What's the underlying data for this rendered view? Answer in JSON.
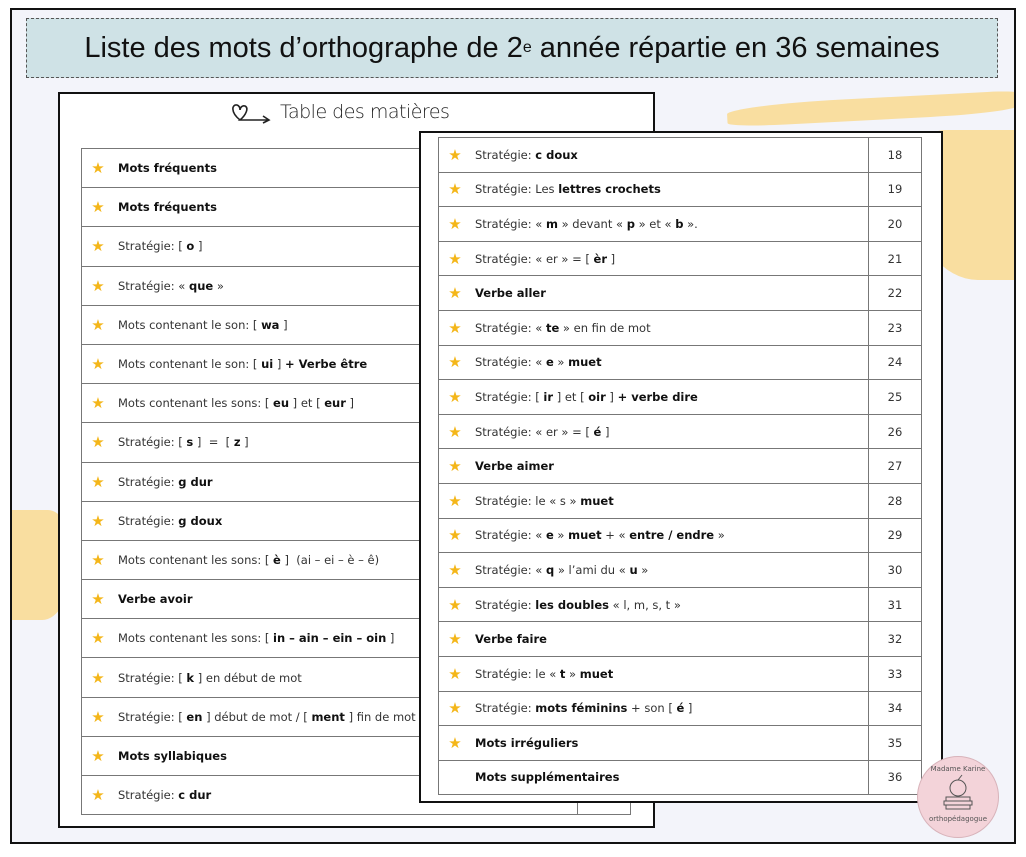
{
  "title": {
    "prefix": "Liste des mots d’orthographe de 2",
    "sup": "e",
    "suffix": " année répartie en 36 semaines"
  },
  "toc_title": "Table des matières",
  "colors": {
    "title_bg": "#cfe2e6",
    "star": "#f4b619",
    "brush": "#f9d98f",
    "background": "#f3f4fa"
  },
  "icons": {
    "row": "star-icon",
    "title": "heart-arrow-icon"
  },
  "back_rows": [
    {
      "seg": [
        {
          "t": "Mots fréquents",
          "b": true
        }
      ]
    },
    {
      "seg": [
        {
          "t": "Mots fréquents",
          "b": true
        }
      ]
    },
    {
      "seg": [
        {
          "t": "Stratégie: [ "
        },
        {
          "t": "o",
          "b": true
        },
        {
          "t": " ]"
        }
      ]
    },
    {
      "seg": [
        {
          "t": "Stratégie: « "
        },
        {
          "t": "que",
          "b": true
        },
        {
          "t": " »"
        }
      ]
    },
    {
      "seg": [
        {
          "t": "Mots contenant le son: [ "
        },
        {
          "t": "wa",
          "b": true
        },
        {
          "t": " ]"
        }
      ]
    },
    {
      "seg": [
        {
          "t": "Mots contenant le son: [ "
        },
        {
          "t": "ui",
          "b": true
        },
        {
          "t": " ] "
        },
        {
          "t": "+ Verbe être",
          "b": true
        }
      ]
    },
    {
      "seg": [
        {
          "t": "Mots contenant les sons: [ "
        },
        {
          "t": "eu",
          "b": true
        },
        {
          "t": " ] et [ "
        },
        {
          "t": "eur",
          "b": true
        },
        {
          "t": " ]"
        }
      ]
    },
    {
      "seg": [
        {
          "t": "Stratégie: [ "
        },
        {
          "t": "s",
          "b": true
        },
        {
          "t": " ]  =  [ "
        },
        {
          "t": "z",
          "b": true
        },
        {
          "t": " ]"
        }
      ]
    },
    {
      "seg": [
        {
          "t": "Stratégie: "
        },
        {
          "t": "g dur",
          "b": true
        }
      ]
    },
    {
      "seg": [
        {
          "t": "Stratégie: "
        },
        {
          "t": "g doux",
          "b": true
        }
      ]
    },
    {
      "seg": [
        {
          "t": "Mots contenant les sons: [ "
        },
        {
          "t": "è",
          "b": true
        },
        {
          "t": " ]  (ai – ei – è – ê)"
        }
      ]
    },
    {
      "seg": [
        {
          "t": "Verbe avoir",
          "b": true
        }
      ]
    },
    {
      "seg": [
        {
          "t": "Mots contenant les sons: [ "
        },
        {
          "t": "in – ain – ein – oin",
          "b": true
        },
        {
          "t": " ]"
        }
      ]
    },
    {
      "seg": [
        {
          "t": "Stratégie: [ "
        },
        {
          "t": "k",
          "b": true
        },
        {
          "t": " ] en début de mot"
        }
      ]
    },
    {
      "seg": [
        {
          "t": "Stratégie: [ "
        },
        {
          "t": "en",
          "b": true
        },
        {
          "t": " ] début de mot / [ "
        },
        {
          "t": "ment",
          "b": true
        },
        {
          "t": " ] fin de mot"
        }
      ]
    },
    {
      "seg": [
        {
          "t": "Mots syllabiques",
          "b": true
        }
      ]
    },
    {
      "seg": [
        {
          "t": "Stratégie: "
        },
        {
          "t": "c dur",
          "b": true
        }
      ]
    }
  ],
  "front_rows": [
    {
      "num": "18",
      "seg": [
        {
          "t": "Stratégie: "
        },
        {
          "t": "c doux",
          "b": true
        }
      ]
    },
    {
      "num": "19",
      "seg": [
        {
          "t": "Stratégie: Les "
        },
        {
          "t": "lettres crochets",
          "b": true
        }
      ]
    },
    {
      "num": "20",
      "seg": [
        {
          "t": "Stratégie: « "
        },
        {
          "t": "m",
          "b": true
        },
        {
          "t": " » devant « "
        },
        {
          "t": "p",
          "b": true
        },
        {
          "t": " » et « "
        },
        {
          "t": "b",
          "b": true
        },
        {
          "t": " »."
        }
      ]
    },
    {
      "num": "21",
      "seg": [
        {
          "t": "Stratégie: « er » = [ "
        },
        {
          "t": "èr",
          "b": true
        },
        {
          "t": " ]"
        }
      ]
    },
    {
      "num": "22",
      "seg": [
        {
          "t": "Verbe aller",
          "b": true
        }
      ]
    },
    {
      "num": "23",
      "seg": [
        {
          "t": "Stratégie: « "
        },
        {
          "t": "te",
          "b": true
        },
        {
          "t": " » en fin de mot"
        }
      ]
    },
    {
      "num": "24",
      "seg": [
        {
          "t": "Stratégie: « "
        },
        {
          "t": "e",
          "b": true
        },
        {
          "t": " » "
        },
        {
          "t": "muet",
          "b": true
        }
      ]
    },
    {
      "num": "25",
      "seg": [
        {
          "t": "Stratégie: [ "
        },
        {
          "t": "ir",
          "b": true
        },
        {
          "t": " ] et [ "
        },
        {
          "t": "oir",
          "b": true
        },
        {
          "t": " ] "
        },
        {
          "t": "+ verbe dire",
          "b": true
        }
      ]
    },
    {
      "num": "26",
      "seg": [
        {
          "t": "Stratégie: « er » = [ "
        },
        {
          "t": "é",
          "b": true
        },
        {
          "t": " ]"
        }
      ]
    },
    {
      "num": "27",
      "seg": [
        {
          "t": "Verbe aimer",
          "b": true
        }
      ]
    },
    {
      "num": "28",
      "seg": [
        {
          "t": "Stratégie: le « s » "
        },
        {
          "t": "muet",
          "b": true
        }
      ]
    },
    {
      "num": "29",
      "seg": [
        {
          "t": "Stratégie: « "
        },
        {
          "t": "e",
          "b": true
        },
        {
          "t": " » "
        },
        {
          "t": "muet",
          "b": true
        },
        {
          "t": " + « "
        },
        {
          "t": "entre / endre",
          "b": true
        },
        {
          "t": " »"
        }
      ]
    },
    {
      "num": "30",
      "seg": [
        {
          "t": "Stratégie: « "
        },
        {
          "t": "q",
          "b": true
        },
        {
          "t": " » l’ami du « "
        },
        {
          "t": "u",
          "b": true
        },
        {
          "t": " »"
        }
      ]
    },
    {
      "num": "31",
      "seg": [
        {
          "t": "Stratégie: "
        },
        {
          "t": "les doubles",
          "b": true
        },
        {
          "t": " « l, m, s, t »"
        }
      ]
    },
    {
      "num": "32",
      "seg": [
        {
          "t": "Verbe faire",
          "b": true
        }
      ]
    },
    {
      "num": "33",
      "seg": [
        {
          "t": "Stratégie: le « "
        },
        {
          "t": "t",
          "b": true
        },
        {
          "t": " » "
        },
        {
          "t": "muet",
          "b": true
        }
      ]
    },
    {
      "num": "34",
      "seg": [
        {
          "t": "Stratégie: "
        },
        {
          "t": "mots féminins",
          "b": true
        },
        {
          "t": " + son [ "
        },
        {
          "t": "é",
          "b": true
        },
        {
          "t": " ]"
        }
      ]
    },
    {
      "num": "35",
      "seg": [
        {
          "t": "Mots irréguliers",
          "b": true
        }
      ]
    },
    {
      "num": "36",
      "seg": [
        {
          "t": "Mots supplémentaires",
          "b": true
        }
      ],
      "nostar": true
    }
  ],
  "logo": {
    "top": "Madame Karine",
    "bottom": "orthopédagogue"
  }
}
